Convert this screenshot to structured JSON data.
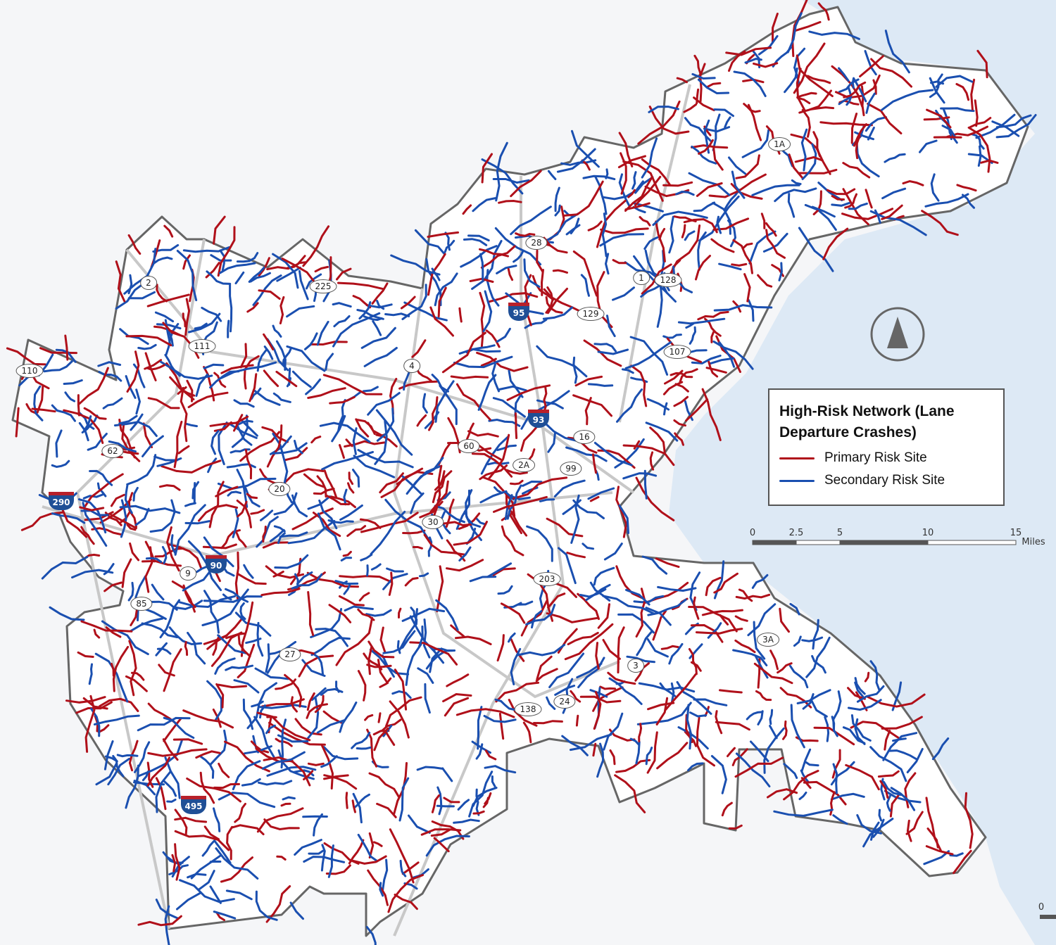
{
  "legend": {
    "title": "High-Risk Network (Lane Departure Crashes)",
    "items": [
      {
        "label": "Primary Risk Site",
        "color": "#b0101a"
      },
      {
        "label": "Secondary Risk Site",
        "color": "#1a4fb0"
      }
    ]
  },
  "scale_bar": {
    "ticks": [
      "0",
      "2.5",
      "5",
      "10",
      "15"
    ],
    "unit": "Miles"
  },
  "corner_scale_tick": "0",
  "north_arrow": "north-arrow-icon",
  "route_shields": [
    "1A",
    "28",
    "225",
    "2",
    "1",
    "128",
    "129",
    "111",
    "110",
    "4",
    "107",
    "16",
    "60",
    "2A",
    "99",
    "62",
    "20",
    "30",
    "9",
    "85",
    "203",
    "3A",
    "27",
    "3",
    "24",
    "138"
  ],
  "interstate_shields": [
    "95",
    "93",
    "290",
    "90",
    "495"
  ],
  "colors": {
    "ocean": "#dde9f5",
    "land": "#ffffff",
    "outside": "#f5f6f8",
    "primary": "#b0101a",
    "secondary": "#1a4fb0",
    "boundary": "#666666"
  }
}
